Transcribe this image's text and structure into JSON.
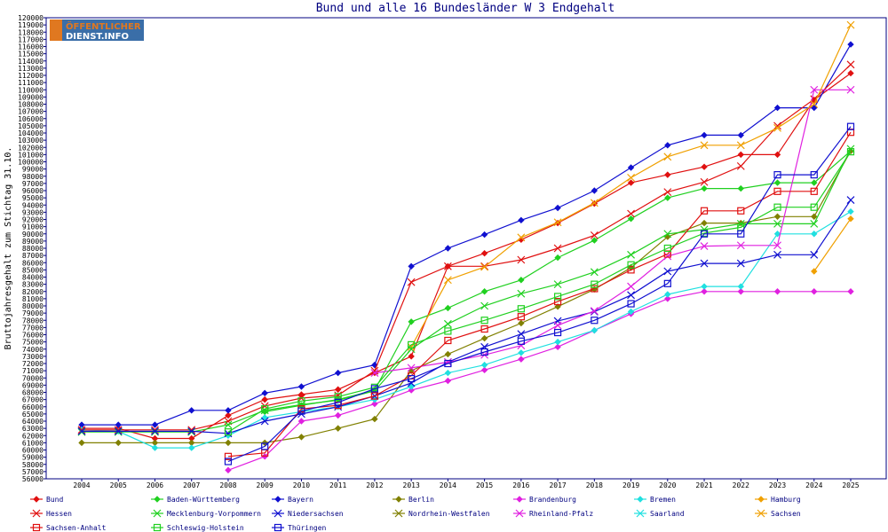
{
  "chart_data": {
    "type": "line",
    "title": "Bund und alle 16 Bundesländer W 3 Endgehalt",
    "ylabel": "Bruttojahresgehalt zum Stichtag 31.10.",
    "xlabel": "",
    "x": [
      2004,
      2005,
      2006,
      2007,
      2008,
      2009,
      2010,
      2011,
      2012,
      2013,
      2014,
      2015,
      2016,
      2017,
      2018,
      2019,
      2020,
      2021,
      2022,
      2023,
      2024,
      2025
    ],
    "ylim": [
      56000,
      120000
    ],
    "ytick_step": 1000,
    "grid": false,
    "legend_position": "bottom",
    "series": [
      {
        "name": "Bund",
        "color": "#e01010",
        "marker": "diamond",
        "values": [
          63000,
          63000,
          61600,
          61600,
          64800,
          67000,
          67700,
          68400,
          70700,
          73000,
          85500,
          87300,
          89200,
          91500,
          94200,
          97100,
          98200,
          99300,
          101000,
          101000,
          108600,
          112300
        ]
      },
      {
        "name": "Baden-Württemberg",
        "color": "#20d020",
        "marker": "diamond",
        "values": [
          null,
          null,
          null,
          null,
          null,
          65300,
          66200,
          67000,
          68300,
          77800,
          79700,
          82000,
          83600,
          86700,
          89100,
          92100,
          95000,
          96300,
          96300,
          97100,
          97100,
          101500
        ]
      },
      {
        "name": "Bayern",
        "color": "#1010d0",
        "marker": "diamond",
        "values": [
          63500,
          63500,
          63500,
          65500,
          65500,
          67900,
          68800,
          70700,
          71800,
          85500,
          88000,
          89900,
          91900,
          93600,
          96000,
          99200,
          102300,
          103700,
          103700,
          107500,
          107500,
          116300
        ]
      },
      {
        "name": "Berlin",
        "color": "#808000",
        "marker": "diamond",
        "values": [
          61000,
          61000,
          61000,
          61000,
          61000,
          61000,
          61800,
          63000,
          64300,
          71000,
          73300,
          75500,
          77600,
          79900,
          82300,
          85300,
          89600,
          91500,
          91500,
          92400,
          92400,
          101500
        ]
      },
      {
        "name": "Brandenburg",
        "color": "#e020e0",
        "marker": "diamond",
        "values": [
          null,
          null,
          null,
          null,
          57200,
          59100,
          64000,
          64800,
          66400,
          68300,
          69600,
          71100,
          72600,
          74300,
          76600,
          78900,
          81000,
          82000,
          82000,
          82000,
          82000,
          82000
        ]
      },
      {
        "name": "Bremen",
        "color": "#20e0e0",
        "marker": "diamond",
        "values": [
          62800,
          62600,
          60300,
          60300,
          62000,
          64500,
          65300,
          66000,
          67000,
          68800,
          70700,
          71800,
          73500,
          75000,
          76600,
          79200,
          81600,
          82700,
          82700,
          90000,
          90000,
          93100
        ]
      },
      {
        "name": "Hamburg",
        "color": "#f0a000",
        "marker": "diamond",
        "values": [
          null,
          null,
          null,
          null,
          null,
          null,
          null,
          null,
          null,
          null,
          null,
          null,
          null,
          null,
          null,
          null,
          null,
          null,
          null,
          null,
          84800,
          92100
        ]
      },
      {
        "name": "Hessen",
        "color": "#e01010",
        "marker": "x",
        "values": [
          62800,
          62800,
          62800,
          62800,
          64000,
          66100,
          67200,
          67600,
          71000,
          83300,
          85500,
          85500,
          86400,
          88000,
          89800,
          92800,
          95800,
          97200,
          99400,
          105000,
          108700,
          113500
        ]
      },
      {
        "name": "Mecklenburg-Vorpommern",
        "color": "#20d020",
        "marker": "x",
        "values": [
          62500,
          62500,
          62500,
          62500,
          63500,
          65500,
          66300,
          66900,
          68200,
          74000,
          77500,
          80000,
          81700,
          83000,
          84700,
          87100,
          90000,
          90600,
          91400,
          91400,
          91400,
          101800
        ]
      },
      {
        "name": "Niedersachsen",
        "color": "#1010d0",
        "marker": "x",
        "values": [
          62600,
          62600,
          62600,
          62600,
          62300,
          64000,
          65000,
          66000,
          67500,
          69300,
          72200,
          74300,
          76100,
          77900,
          79200,
          81500,
          84800,
          85900,
          85900,
          87100,
          87100,
          94700
        ]
      },
      {
        "name": "Nordrhein-Westfalen",
        "color": "#808000",
        "marker": "x",
        "values": [
          null,
          null,
          null,
          null,
          null,
          null,
          null,
          null,
          null,
          null,
          null,
          null,
          null,
          null,
          null,
          null,
          null,
          null,
          null,
          null,
          null,
          null
        ]
      },
      {
        "name": "Rheinland-Pfalz",
        "color": "#e020e0",
        "marker": "x",
        "values": [
          null,
          null,
          null,
          null,
          null,
          null,
          null,
          null,
          70700,
          71400,
          72200,
          73200,
          74500,
          77300,
          79300,
          82700,
          86900,
          88300,
          88400,
          88400,
          110000,
          110000
        ]
      },
      {
        "name": "Saarland",
        "color": "#20e0e0",
        "marker": "x",
        "values": [
          null,
          null,
          null,
          null,
          null,
          null,
          null,
          null,
          null,
          null,
          null,
          null,
          null,
          null,
          null,
          null,
          null,
          null,
          null,
          null,
          null,
          null
        ]
      },
      {
        "name": "Sachsen",
        "color": "#f0a000",
        "marker": "x",
        "values": [
          null,
          null,
          null,
          null,
          null,
          null,
          null,
          null,
          null,
          74300,
          83600,
          85400,
          89500,
          91600,
          94300,
          97800,
          100700,
          102300,
          102300,
          104700,
          108000,
          119000
        ]
      },
      {
        "name": "Sachsen-Anhalt",
        "color": "#e01010",
        "marker": "square",
        "values": [
          null,
          null,
          null,
          null,
          59100,
          59600,
          65700,
          66200,
          67500,
          70300,
          75200,
          76800,
          78500,
          80600,
          82400,
          85000,
          87200,
          93200,
          93200,
          95900,
          95900,
          104100
        ]
      },
      {
        "name": "Schleswig-Holstein",
        "color": "#20d020",
        "marker": "square",
        "values": [
          null,
          null,
          null,
          null,
          62500,
          65700,
          66800,
          67400,
          68700,
          74600,
          76500,
          78000,
          79600,
          81300,
          83000,
          85700,
          88000,
          90100,
          90900,
          93700,
          93700,
          101400
        ]
      },
      {
        "name": "Thüringen",
        "color": "#1010d0",
        "marker": "square",
        "values": [
          null,
          null,
          null,
          null,
          58400,
          60500,
          65400,
          66600,
          68500,
          69900,
          72000,
          73600,
          75100,
          76300,
          78000,
          80300,
          83100,
          90000,
          90000,
          98200,
          98200,
          104900
        ]
      }
    ]
  },
  "logo": {
    "line1": "ÖFFENTLICHER",
    "line2": "DIENST.INFO"
  }
}
